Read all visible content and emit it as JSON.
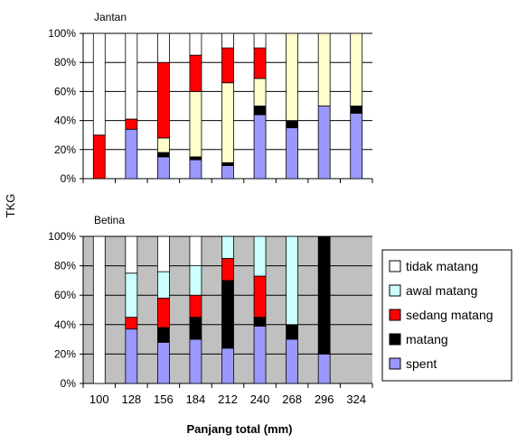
{
  "figure": {
    "shared_ylabel": "TKG",
    "shared_xlabel": "Panjang total (mm)"
  },
  "legend": [
    {
      "label": "tidak matang",
      "color": "#ffffff"
    },
    {
      "label": "awal matang",
      "color": "#ccffff"
    },
    {
      "label": "sedang matang",
      "color": "#ff0000"
    },
    {
      "label": "matang",
      "color": "#000000"
    },
    {
      "label": "spent",
      "color": "#9999ff"
    }
  ],
  "chart_data": [
    {
      "type": "bar",
      "stacked": true,
      "percent": true,
      "title": "Jantan",
      "plot_background": "#ffffff",
      "categories": [
        "100",
        "128",
        "156",
        "184",
        "212",
        "240",
        "268",
        "296",
        "324"
      ],
      "ylim": [
        0,
        100
      ],
      "yticks": [
        "0%",
        "20%",
        "40%",
        "60%",
        "80%",
        "100%"
      ],
      "series": [
        {
          "name": "spent",
          "color": "#9999ff",
          "values": [
            0,
            34,
            15,
            13,
            9,
            44,
            35,
            50,
            45
          ]
        },
        {
          "name": "matang",
          "color": "#000000",
          "values": [
            0,
            0,
            3,
            2,
            2,
            6,
            5,
            0,
            5
          ]
        },
        {
          "name": "sedang matang",
          "color": "#ff0000",
          "values": [
            30,
            7,
            0,
            0,
            0,
            0,
            0,
            0,
            0
          ]
        },
        {
          "name": "awal matang",
          "color": "#ffffcc",
          "values": [
            0,
            0,
            10,
            45,
            55,
            19,
            60,
            50,
            50
          ]
        },
        {
          "name": "sedang matang",
          "color": "#ff0000",
          "values": [
            0,
            0,
            52,
            25,
            24,
            21,
            0,
            0,
            0
          ]
        },
        {
          "name": "tidak matang",
          "color": "#ffffff",
          "values": [
            70,
            59,
            20,
            15,
            10,
            10,
            0,
            0,
            0
          ]
        }
      ]
    },
    {
      "type": "bar",
      "stacked": true,
      "percent": true,
      "title": "Betina",
      "plot_background": "#c0c0c0",
      "categories": [
        "100",
        "128",
        "156",
        "184",
        "212",
        "240",
        "268",
        "296",
        "324"
      ],
      "ylim": [
        0,
        100
      ],
      "yticks": [
        "0%",
        "20%",
        "40%",
        "60%",
        "80%",
        "100%"
      ],
      "series": [
        {
          "name": "spent",
          "color": "#9999ff",
          "values": [
            0,
            37,
            28,
            30,
            24,
            39,
            30,
            20,
            0
          ]
        },
        {
          "name": "matang",
          "color": "#000000",
          "values": [
            0,
            0,
            10,
            15,
            46,
            6,
            10,
            80,
            0
          ]
        },
        {
          "name": "sedang matang",
          "color": "#ff0000",
          "values": [
            0,
            8,
            20,
            15,
            15,
            28,
            0,
            0,
            0
          ]
        },
        {
          "name": "awal matang",
          "color": "#ccffff",
          "values": [
            0,
            30,
            18,
            20,
            15,
            27,
            60,
            0,
            0
          ]
        },
        {
          "name": "tidak matang",
          "color": "#ffffff",
          "values": [
            100,
            25,
            24,
            20,
            0,
            0,
            0,
            0,
            0
          ]
        }
      ]
    }
  ]
}
